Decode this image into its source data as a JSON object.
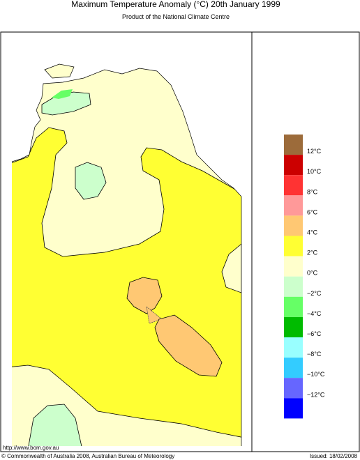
{
  "header": {
    "title": "Maximum Temperature Anomaly (°C)  20th January 1999",
    "subtitle": "Product of the National Climate Centre"
  },
  "legend": {
    "colors": [
      "#9c6b3a",
      "#cc0000",
      "#ff3333",
      "#ff9999",
      "#ffc873",
      "#ffff33",
      "#ffffcc",
      "#ccffcc",
      "#66ff66",
      "#00bb00",
      "#99ffff",
      "#33ccff",
      "#6666ff",
      "#0000ff"
    ],
    "labels": [
      "12°C",
      "10°C",
      "8°C",
      "6°C",
      "4°C",
      "2°C",
      "0°C",
      "−2°C",
      "−4°C",
      "−6°C",
      "−8°C",
      "−10°C",
      "−12°C"
    ]
  },
  "footer": {
    "url": "http://www.bom.gov.au",
    "copyright": "© Commonwealth of Australia 2008, Australian Bureau of Meteorology",
    "issued": "Issued: 18/02/2008"
  }
}
